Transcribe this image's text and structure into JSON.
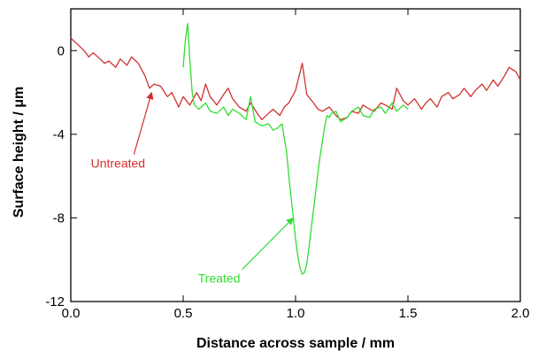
{
  "chart_data": {
    "type": "line",
    "xlabel": "Distance across sample  / mm",
    "ylabel": "Surface height  / μm",
    "xlim": [
      0,
      2
    ],
    "ylim": [
      -12,
      2
    ],
    "grid": false,
    "x_ticks": [
      0,
      0.5,
      1,
      1.5,
      2
    ],
    "x_tick_labels": [
      "0.0",
      "0.5",
      "1.0",
      "1.5",
      "2.0"
    ],
    "y_ticks": [
      0,
      -4,
      -8,
      -12
    ],
    "y_tick_labels": [
      "0",
      "-4",
      "-8",
      "-12"
    ],
    "series": [
      {
        "name": "Untreated",
        "color": "#d0312d",
        "x": [
          0.0,
          0.03,
          0.06,
          0.08,
          0.1,
          0.13,
          0.15,
          0.17,
          0.2,
          0.22,
          0.25,
          0.27,
          0.3,
          0.33,
          0.35,
          0.37,
          0.4,
          0.43,
          0.45,
          0.48,
          0.5,
          0.53,
          0.56,
          0.58,
          0.6,
          0.62,
          0.65,
          0.68,
          0.7,
          0.72,
          0.75,
          0.78,
          0.8,
          0.83,
          0.85,
          0.88,
          0.9,
          0.93,
          0.95,
          0.97,
          1.0,
          1.03,
          1.05,
          1.08,
          1.1,
          1.12,
          1.15,
          1.18,
          1.2,
          1.23,
          1.25,
          1.28,
          1.3,
          1.33,
          1.35,
          1.38,
          1.4,
          1.43,
          1.45,
          1.48,
          1.5,
          1.53,
          1.56,
          1.58,
          1.6,
          1.63,
          1.65,
          1.68,
          1.7,
          1.73,
          1.75,
          1.78,
          1.8,
          1.83,
          1.85,
          1.88,
          1.9,
          1.93,
          1.95,
          1.98,
          2.0
        ],
        "y": [
          0.6,
          0.3,
          0.0,
          -0.3,
          -0.1,
          -0.4,
          -0.6,
          -0.5,
          -0.8,
          -0.4,
          -0.7,
          -0.3,
          -0.6,
          -1.2,
          -1.8,
          -1.6,
          -1.7,
          -2.2,
          -2.0,
          -2.7,
          -2.2,
          -2.6,
          -2.0,
          -2.4,
          -1.6,
          -2.2,
          -2.6,
          -2.1,
          -1.8,
          -2.3,
          -2.7,
          -2.9,
          -2.5,
          -3.0,
          -3.3,
          -3.0,
          -2.8,
          -3.1,
          -2.7,
          -2.5,
          -1.9,
          -0.6,
          -2.1,
          -2.5,
          -2.8,
          -2.9,
          -2.7,
          -3.1,
          -3.3,
          -3.2,
          -2.9,
          -3.0,
          -2.6,
          -2.8,
          -2.9,
          -2.5,
          -2.6,
          -2.8,
          -1.8,
          -2.4,
          -2.6,
          -2.3,
          -2.8,
          -2.5,
          -2.3,
          -2.7,
          -2.2,
          -2.0,
          -2.3,
          -2.1,
          -1.8,
          -2.2,
          -1.9,
          -1.6,
          -1.9,
          -1.4,
          -1.7,
          -1.2,
          -0.8,
          -1.0,
          -1.4
        ]
      },
      {
        "name": "Treated",
        "color": "#33dd33",
        "x": [
          0.5,
          0.51,
          0.52,
          0.53,
          0.54,
          0.55,
          0.57,
          0.6,
          0.62,
          0.65,
          0.68,
          0.7,
          0.72,
          0.75,
          0.78,
          0.8,
          0.82,
          0.85,
          0.88,
          0.9,
          0.92,
          0.94,
          0.95,
          0.96,
          0.97,
          0.98,
          0.99,
          1.0,
          1.01,
          1.02,
          1.03,
          1.04,
          1.05,
          1.06,
          1.07,
          1.08,
          1.09,
          1.1,
          1.11,
          1.12,
          1.13,
          1.14,
          1.15,
          1.16,
          1.18,
          1.2,
          1.23,
          1.25,
          1.28,
          1.3,
          1.33,
          1.35,
          1.38,
          1.4,
          1.43,
          1.45,
          1.48,
          1.5
        ],
        "y": [
          -0.8,
          0.5,
          1.3,
          -0.5,
          -2.0,
          -2.6,
          -2.8,
          -2.5,
          -2.9,
          -3.0,
          -2.7,
          -3.1,
          -2.8,
          -3.0,
          -3.3,
          -2.2,
          -3.4,
          -3.6,
          -3.5,
          -3.8,
          -3.7,
          -3.5,
          -4.2,
          -4.8,
          -6.0,
          -7.0,
          -8.0,
          -9.0,
          -9.8,
          -10.4,
          -10.7,
          -10.6,
          -10.2,
          -9.4,
          -8.5,
          -7.6,
          -6.7,
          -5.8,
          -5.0,
          -4.3,
          -3.6,
          -3.1,
          -3.2,
          -3.0,
          -2.9,
          -3.4,
          -3.2,
          -2.9,
          -2.7,
          -3.1,
          -3.2,
          -2.8,
          -2.7,
          -3.0,
          -2.5,
          -2.9,
          -2.6,
          -2.8
        ]
      }
    ],
    "annotations": [
      {
        "text": "Untreated",
        "color": "#d0312d",
        "label_x": 0.21,
        "label_y": -5.6,
        "arrow_to_x": 0.36,
        "arrow_to_y": -2.0
      },
      {
        "text": "Treated",
        "color": "#33dd33",
        "label_x": 0.66,
        "label_y": -11.1,
        "arrow_to_x": 0.99,
        "arrow_to_y": -8.0
      }
    ]
  }
}
